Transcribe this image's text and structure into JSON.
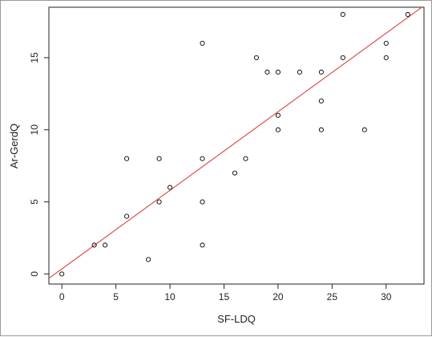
{
  "chart_data": {
    "type": "scatter",
    "title": "",
    "xlabel": "SF-LDQ",
    "ylabel": "Ar-GerdQ",
    "xlim": [
      -1.2,
      33.5
    ],
    "ylim": [
      -0.7,
      18.5
    ],
    "x_ticks": [
      0,
      5,
      10,
      15,
      20,
      25,
      30
    ],
    "y_ticks": [
      0,
      5,
      10,
      15
    ],
    "grid": false,
    "legend": "none",
    "point_color": "#000000",
    "series": [
      {
        "points": [
          [
            0,
            0
          ],
          [
            3,
            2
          ],
          [
            4,
            2
          ],
          [
            6,
            4
          ],
          [
            6,
            8
          ],
          [
            8,
            1
          ],
          [
            9,
            5
          ],
          [
            9,
            8
          ],
          [
            10,
            6
          ],
          [
            13,
            2
          ],
          [
            13,
            5
          ],
          [
            13,
            8
          ],
          [
            13,
            16
          ],
          [
            16,
            7
          ],
          [
            17,
            8
          ],
          [
            18,
            15
          ],
          [
            19,
            14
          ],
          [
            20,
            14
          ],
          [
            20,
            11
          ],
          [
            20,
            10
          ],
          [
            22,
            14
          ],
          [
            24,
            14
          ],
          [
            24,
            12
          ],
          [
            24,
            10
          ],
          [
            26,
            15
          ],
          [
            26,
            18
          ],
          [
            28,
            10
          ],
          [
            30,
            16
          ],
          [
            30,
            15
          ],
          [
            32,
            18
          ]
        ]
      }
    ],
    "regression_line": {
      "color": "#d9534f",
      "intercept": 0.35,
      "slope": 0.545
    }
  }
}
